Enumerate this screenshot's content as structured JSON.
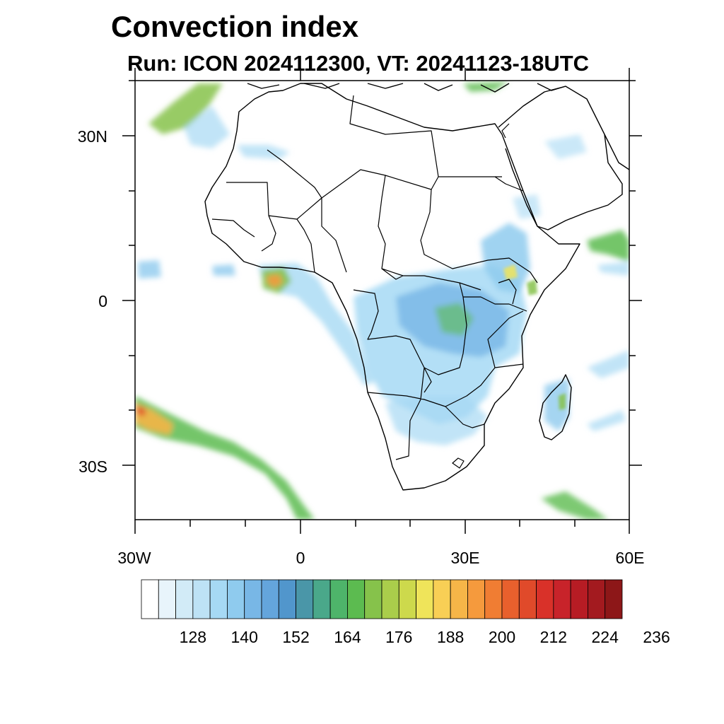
{
  "header": {
    "title": "Convection index",
    "subtitle": "Run: ICON 2024112300,  VT: 20241123-18UTC"
  },
  "map": {
    "region": "Africa",
    "lon_range": [
      -30,
      60
    ],
    "lat_range": [
      -40,
      40
    ],
    "lat_ticks": [
      {
        "value": 30,
        "label": "30N"
      },
      {
        "value": 0,
        "label": "0"
      },
      {
        "value": -30,
        "label": "30S"
      }
    ],
    "lon_ticks": [
      {
        "value": -30,
        "label": "30W"
      },
      {
        "value": 0,
        "label": "0"
      },
      {
        "value": 30,
        "label": "30E"
      },
      {
        "value": 60,
        "label": "60E"
      }
    ]
  },
  "colorbar": {
    "labels": [
      "128",
      "140",
      "152",
      "164",
      "176",
      "188",
      "200",
      "212",
      "224",
      "236"
    ],
    "colors": [
      "#ffffff",
      "#e8f4fb",
      "#d2ebf7",
      "#bde2f5",
      "#a6d9f4",
      "#8fcbee",
      "#78b7e6",
      "#64a5dc",
      "#5196cc",
      "#4a96a8",
      "#4aa88a",
      "#4eb46a",
      "#5cbb50",
      "#86c24b",
      "#aacd4b",
      "#cdd94c",
      "#efe45a",
      "#f8cf55",
      "#f6b548",
      "#f59a3d",
      "#f07d33",
      "#e8602d",
      "#e04a2a",
      "#d93129",
      "#c8232a",
      "#b71c24",
      "#a31a1f",
      "#8d1718"
    ]
  }
}
